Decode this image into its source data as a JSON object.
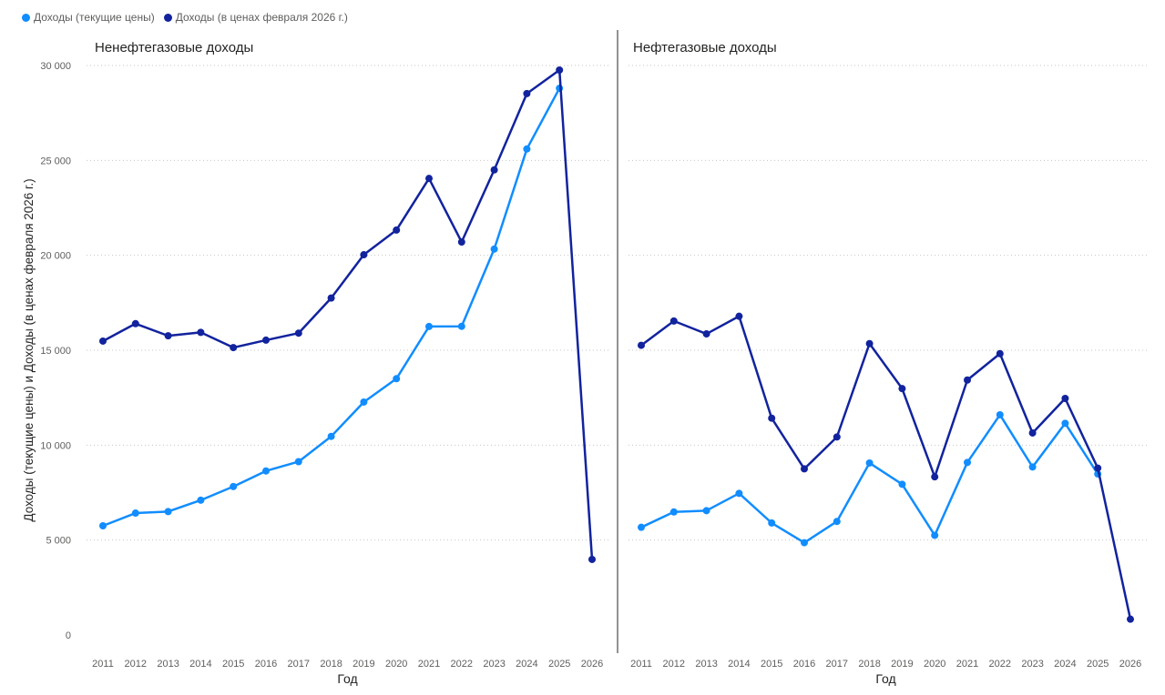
{
  "legend": [
    {
      "label": "Доходы (текущие цены)",
      "color": "#118DFF"
    },
    {
      "label": "Доходы (в ценах февраля 2026 г.)",
      "color": "#12239E"
    }
  ],
  "chart_data": [
    {
      "type": "line",
      "title": "Ненефтегазовые доходы",
      "xlabel": "Год",
      "ylabel": "Доходы (текущие цены) и Доходы (в ценах февраля 2026 г.)",
      "ylim": [
        0,
        30000
      ],
      "yticks": [
        "0",
        "5 000",
        "10 000",
        "15 000",
        "20 000",
        "25 000",
        "30 000"
      ],
      "grid": true,
      "legend_position": "top-left",
      "x": [
        "2011",
        "2012",
        "2013",
        "2014",
        "2015",
        "2016",
        "2017",
        "2018",
        "2019",
        "2020",
        "2021",
        "2022",
        "2023",
        "2024",
        "2025",
        "2026"
      ],
      "series": [
        {
          "name": "Доходы (текущие цены)",
          "color": "#118DFF",
          "values": [
            5750,
            6420,
            6500,
            7100,
            7820,
            8640,
            9130,
            10460,
            12270,
            13500,
            16250,
            16260,
            20330,
            25600,
            28800,
            null
          ]
        },
        {
          "name": "Доходы (в ценах февраля 2026 г.)",
          "color": "#12239E",
          "values": [
            15480,
            16400,
            15760,
            15940,
            15140,
            15530,
            15900,
            17750,
            20030,
            21330,
            24050,
            20700,
            24500,
            28520,
            29760,
            3980
          ]
        }
      ]
    },
    {
      "type": "line",
      "title": "Нефтегазовые доходы",
      "xlabel": "Год",
      "ylim": [
        0,
        30000
      ],
      "grid": true,
      "x": [
        "2011",
        "2012",
        "2013",
        "2014",
        "2015",
        "2016",
        "2017",
        "2018",
        "2019",
        "2020",
        "2021",
        "2022",
        "2023",
        "2024",
        "2025",
        "2026"
      ],
      "series": [
        {
          "name": "Доходы (текущие цены)",
          "color": "#118DFF",
          "values": [
            5670,
            6480,
            6550,
            7460,
            5900,
            4860,
            5980,
            9060,
            7940,
            5250,
            9090,
            11600,
            8850,
            11150,
            8480,
            null
          ]
        },
        {
          "name": "Доходы (в ценах февраля 2026 г.)",
          "color": "#12239E",
          "values": [
            15260,
            16540,
            15860,
            16790,
            11420,
            8750,
            10430,
            15350,
            12980,
            8330,
            13430,
            14820,
            10640,
            12460,
            8790,
            830
          ]
        }
      ]
    }
  ]
}
